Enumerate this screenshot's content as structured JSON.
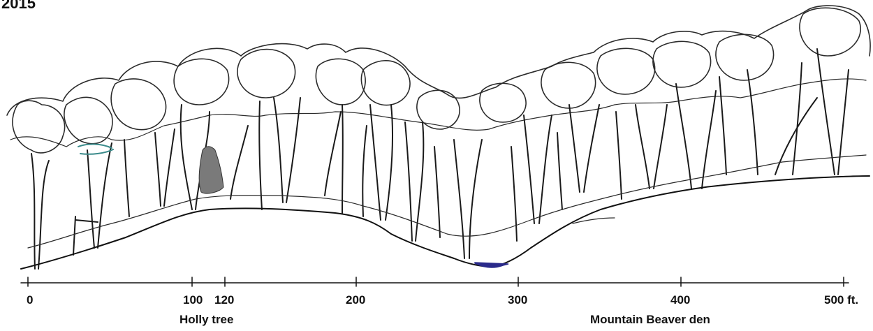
{
  "year": "2015",
  "axis": {
    "ticks": [
      "0",
      "100",
      "120",
      "200",
      "300",
      "400",
      "500 ft."
    ],
    "landmarks": [
      "Holly tree",
      "Mountain Beaver den"
    ]
  },
  "colors": {
    "ink": "#1a1a1a",
    "canopy_ink": "#2b2b2b",
    "water": "#2a2a8a",
    "holly": "#7a7a7a",
    "teal_mark": "#3a8a8a"
  }
}
